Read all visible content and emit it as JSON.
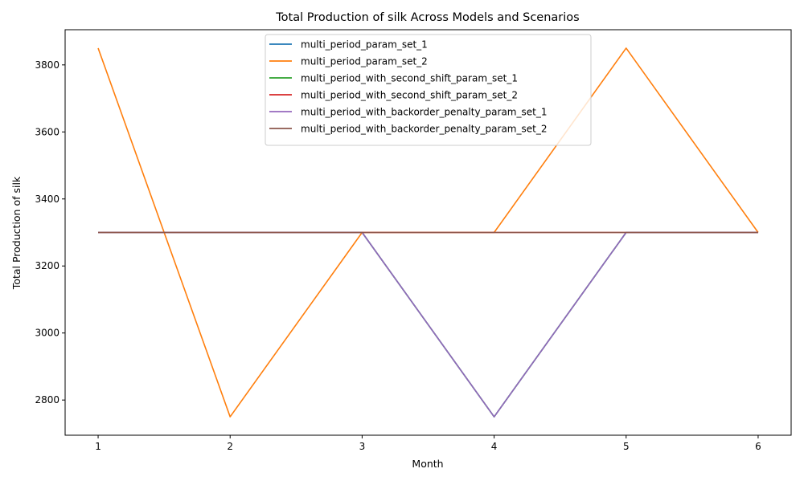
{
  "chart_data": {
    "type": "line",
    "title": "Total Production of silk Across Models and Scenarios",
    "xlabel": "Month",
    "ylabel": "Total Production of silk",
    "x": [
      1,
      2,
      3,
      4,
      5,
      6
    ],
    "xlim": [
      0.75,
      6.25
    ],
    "ylim": [
      2695,
      3905
    ],
    "yticks": [
      2800,
      3000,
      3200,
      3400,
      3600,
      3800
    ],
    "xticks": [
      1,
      2,
      3,
      4,
      5,
      6
    ],
    "grid": false,
    "legend_position": "top-center",
    "series": [
      {
        "name": "multi_period_param_set_1",
        "color": "#1f77b4",
        "values": [
          3300,
          3300,
          3300,
          2750,
          3300,
          3300
        ]
      },
      {
        "name": "multi_period_param_set_2",
        "color": "#ff7f0e",
        "values": [
          3850,
          2750,
          3300,
          3300,
          3850,
          3300
        ]
      },
      {
        "name": "multi_period_with_second_shift_param_set_1",
        "color": "#2ca02c",
        "values": [
          3300,
          3300,
          3300,
          2750,
          3300,
          3300
        ]
      },
      {
        "name": "multi_period_with_second_shift_param_set_2",
        "color": "#d62728",
        "values": [
          3300,
          3300,
          3300,
          3300,
          3300,
          3300
        ]
      },
      {
        "name": "multi_period_with_backorder_penalty_param_set_1",
        "color": "#9467bd",
        "values": [
          3300,
          3300,
          3300,
          2750,
          3300,
          3300
        ]
      },
      {
        "name": "multi_period_with_backorder_penalty_param_set_2",
        "color": "#8c564b",
        "values": [
          3300,
          3300,
          3300,
          3300,
          3300,
          3300
        ]
      }
    ]
  }
}
